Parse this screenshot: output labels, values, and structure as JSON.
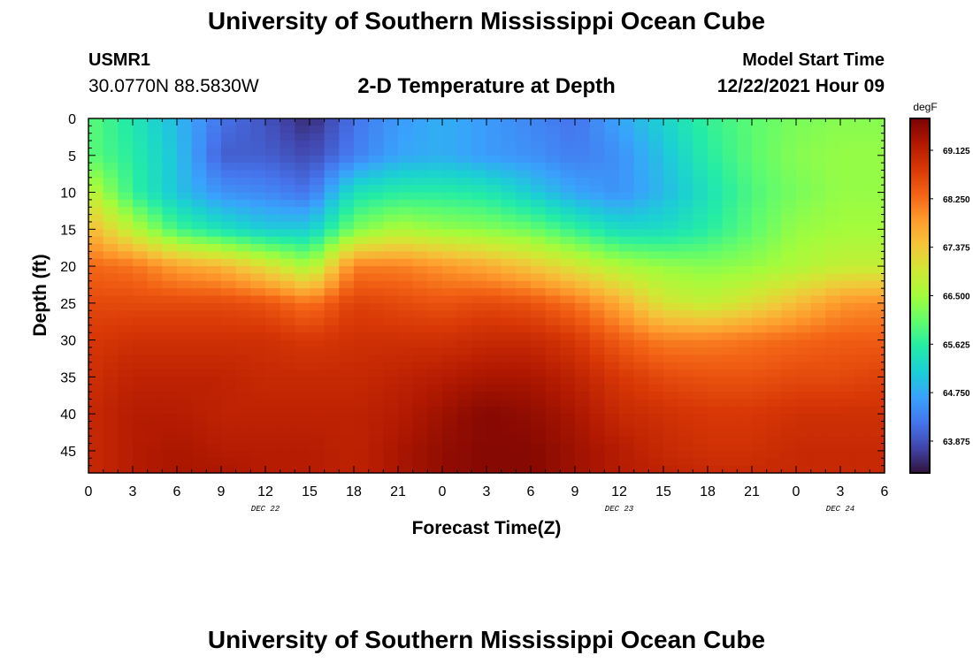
{
  "page": {
    "title": "University of Southern Mississippi Ocean Cube",
    "station_id": "USMR1",
    "station_coords": "30.0770N  88.5830W",
    "chart_heading": "2-D Temperature at Depth",
    "model_start_label": "Model Start Time",
    "model_start_value": "12/22/2021 Hour 09",
    "footer_title": "University of Southern Mississippi Ocean Cube"
  },
  "chart_data": {
    "type": "heatmap",
    "title": "2-D Temperature at Depth",
    "xlabel": "Forecast Time(Z)",
    "ylabel": "Depth (ft)",
    "x_hours_since_dec22_00z": [
      0,
      3,
      6,
      9,
      12,
      15,
      18,
      21,
      24,
      27,
      30,
      33,
      36,
      39,
      42,
      45,
      48,
      51,
      54
    ],
    "x_tick_labels": [
      "0",
      "3",
      "6",
      "9",
      "12",
      "15",
      "18",
      "21",
      "0",
      "3",
      "6",
      "9",
      "12",
      "15",
      "18",
      "21",
      "0",
      "3",
      "6"
    ],
    "x_date_labels": [
      {
        "label": "DEC 22",
        "at_tick_index": 4
      },
      {
        "label": "DEC 23",
        "at_tick_index": 12
      },
      {
        "label": "DEC 24",
        "at_tick_index": 17
      }
    ],
    "y_ticks": [
      0,
      5,
      10,
      15,
      20,
      25,
      30,
      35,
      40,
      45
    ],
    "y_tick_labels": [
      "0",
      "5",
      "10",
      "15",
      "20",
      "25",
      "30",
      "35",
      "40",
      "45"
    ],
    "ylim": [
      48,
      0
    ],
    "depth_ft": [
      0,
      5,
      10,
      15,
      20,
      25,
      30,
      35,
      40,
      45,
      48
    ],
    "temperature_degF_rows_by_depth": [
      [
        66.0,
        65.5,
        64.9,
        64.2,
        63.9,
        63.5,
        64.2,
        64.6,
        64.8,
        64.6,
        64.4,
        64.2,
        64.7,
        65.2,
        65.7,
        66.0,
        66.2,
        66.3,
        66.3
      ],
      [
        66.0,
        65.6,
        65.0,
        64.0,
        64.0,
        63.8,
        64.3,
        64.7,
        64.8,
        64.6,
        64.5,
        64.3,
        64.5,
        65.0,
        65.6,
        66.0,
        66.3,
        66.4,
        66.4
      ],
      [
        66.8,
        65.7,
        65.0,
        64.5,
        64.4,
        64.2,
        65.4,
        65.6,
        65.6,
        65.5,
        65.1,
        64.7,
        64.5,
        64.9,
        65.4,
        65.9,
        66.2,
        66.4,
        66.4
      ],
      [
        67.6,
        66.7,
        65.8,
        65.4,
        65.1,
        65.1,
        66.2,
        66.6,
        66.4,
        66.3,
        66.1,
        65.7,
        65.3,
        65.3,
        65.6,
        66.0,
        66.4,
        66.5,
        66.5
      ],
      [
        68.3,
        68.2,
        67.8,
        67.6,
        67.1,
        66.5,
        68.1,
        68.1,
        67.9,
        67.7,
        67.4,
        67.0,
        66.6,
        66.4,
        66.3,
        66.4,
        66.6,
        66.8,
        66.8
      ],
      [
        68.6,
        68.6,
        68.6,
        68.6,
        68.5,
        68.2,
        68.7,
        68.6,
        68.5,
        68.6,
        68.5,
        68.2,
        67.7,
        67.0,
        66.8,
        67.1,
        67.5,
        67.9,
        68.0
      ],
      [
        68.8,
        68.9,
        68.9,
        68.9,
        68.9,
        68.8,
        68.9,
        68.9,
        68.9,
        69.0,
        69.0,
        68.8,
        68.4,
        68.1,
        68.1,
        68.2,
        68.3,
        68.4,
        68.4
      ],
      [
        68.9,
        69.1,
        69.1,
        69.1,
        69.0,
        69.0,
        69.0,
        69.1,
        69.2,
        69.3,
        69.3,
        69.1,
        68.8,
        68.6,
        68.5,
        68.5,
        68.6,
        68.6,
        68.7
      ],
      [
        69.0,
        69.2,
        69.2,
        69.1,
        69.1,
        69.1,
        69.1,
        69.2,
        69.4,
        69.6,
        69.5,
        69.3,
        69.0,
        68.9,
        68.8,
        68.8,
        68.9,
        68.9,
        68.9
      ],
      [
        69.0,
        69.2,
        69.3,
        69.2,
        69.2,
        69.2,
        69.1,
        69.3,
        69.5,
        69.6,
        69.6,
        69.4,
        69.2,
        69.0,
        68.9,
        68.9,
        69.0,
        69.0,
        69.0
      ],
      [
        69.0,
        69.2,
        69.3,
        69.3,
        69.2,
        69.2,
        69.1,
        69.3,
        69.5,
        69.6,
        69.6,
        69.4,
        69.2,
        69.1,
        69.0,
        69.0,
        69.0,
        69.0,
        69.0
      ]
    ],
    "colorbar": {
      "unit_label": "degF",
      "vmin": 63.3,
      "vmax": 69.7,
      "tick_values": [
        69.125,
        68.25,
        67.375,
        66.5,
        65.625,
        64.75,
        63.875
      ],
      "tick_labels": [
        "69.125",
        "68.250",
        "67.375",
        "66.500",
        "65.625",
        "64.750",
        "63.875"
      ]
    },
    "colormap_hex": [
      "#30123b",
      "#4145ab",
      "#4675ed",
      "#39a2fc",
      "#1bcfd4",
      "#24eca6",
      "#61fc6c",
      "#a4fc3b",
      "#d1e834",
      "#f3c63a",
      "#fe9b2d",
      "#f36315",
      "#d93806",
      "#b11901",
      "#7a0402"
    ],
    "grid": false,
    "legend": "colorbar-right"
  }
}
